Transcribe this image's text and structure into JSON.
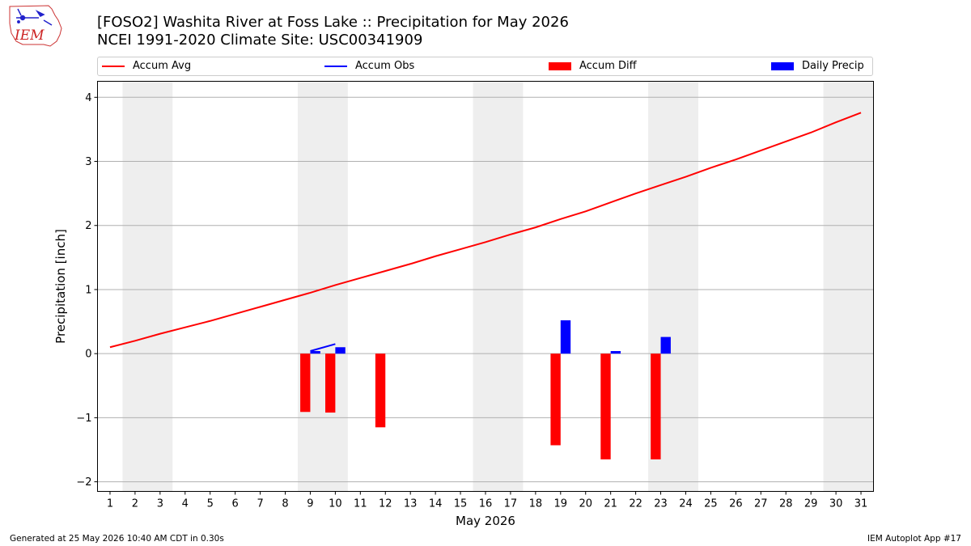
{
  "header": {
    "title_line1": "[FOSO2] Washita River at Foss Lake :: Precipitation for May 2026",
    "title_line2": "NCEI 1991-2020 Climate Site: USC00341909",
    "logo_text": "IEM"
  },
  "colors": {
    "accum_avg": "#ff0000",
    "accum_obs": "#0000ff",
    "accum_diff": "#ff0000",
    "daily_precip": "#0000ff",
    "weekend_shade": "#eeeeee",
    "grid": "#b0b0b0"
  },
  "chart_data": {
    "type": "bar",
    "title": "[FOSO2] Washita River at Foss Lake :: Precipitation for May 2026",
    "subtitle": "NCEI 1991-2020 Climate Site: USC00341909",
    "xlabel": "May 2026",
    "ylabel": "Precipitation [inch]",
    "xlim": [
      0.5,
      31.5
    ],
    "ylim": [
      -2.15,
      4.25
    ],
    "yticks": [
      -2,
      -1,
      0,
      1,
      2,
      3,
      4
    ],
    "xticks": [
      1,
      2,
      3,
      4,
      5,
      6,
      7,
      8,
      9,
      10,
      11,
      12,
      13,
      14,
      15,
      16,
      17,
      18,
      19,
      20,
      21,
      22,
      23,
      24,
      25,
      26,
      27,
      28,
      29,
      30,
      31
    ],
    "grid": "horizontal",
    "legend_placement": "top, above plot",
    "weekend_spans": [
      [
        1.5,
        3.5
      ],
      [
        8.5,
        10.5
      ],
      [
        15.5,
        17.5
      ],
      [
        22.5,
        24.5
      ],
      [
        29.5,
        31.5
      ]
    ],
    "legend": [
      "Accum Avg",
      "Accum Obs",
      "Accum Diff",
      "Daily Precip"
    ],
    "series": [
      {
        "name": "Accum Avg",
        "kind": "line",
        "x": [
          1,
          2,
          3,
          4,
          5,
          6,
          7,
          8,
          9,
          10,
          11,
          12,
          13,
          14,
          15,
          16,
          17,
          18,
          19,
          20,
          21,
          22,
          23,
          24,
          25,
          26,
          27,
          28,
          29,
          30,
          31
        ],
        "values": [
          0.1,
          0.2,
          0.31,
          0.41,
          0.51,
          0.62,
          0.73,
          0.84,
          0.95,
          1.07,
          1.18,
          1.29,
          1.4,
          1.52,
          1.63,
          1.74,
          1.86,
          1.97,
          2.1,
          2.22,
          2.36,
          2.5,
          2.63,
          2.76,
          2.9,
          3.03,
          3.17,
          3.31,
          3.45,
          3.61,
          3.76
        ]
      },
      {
        "name": "Accum Obs",
        "kind": "line",
        "x": [
          9,
          10
        ],
        "values": [
          0.04,
          0.15
        ]
      },
      {
        "name": "Accum Diff",
        "kind": "bar",
        "x": [
          9,
          10,
          12,
          19,
          21,
          23
        ],
        "values": [
          -0.91,
          -0.92,
          -1.15,
          -1.43,
          -1.65,
          -1.65
        ]
      },
      {
        "name": "Daily Precip",
        "kind": "bar",
        "x": [
          9,
          10,
          19,
          21,
          23
        ],
        "values": [
          0.04,
          0.1,
          0.52,
          0.04,
          0.26
        ]
      }
    ]
  },
  "footer": {
    "generated": "Generated at 25 May 2026 10:40 AM CDT in 0.30s",
    "app": "IEM Autoplot App #17"
  }
}
